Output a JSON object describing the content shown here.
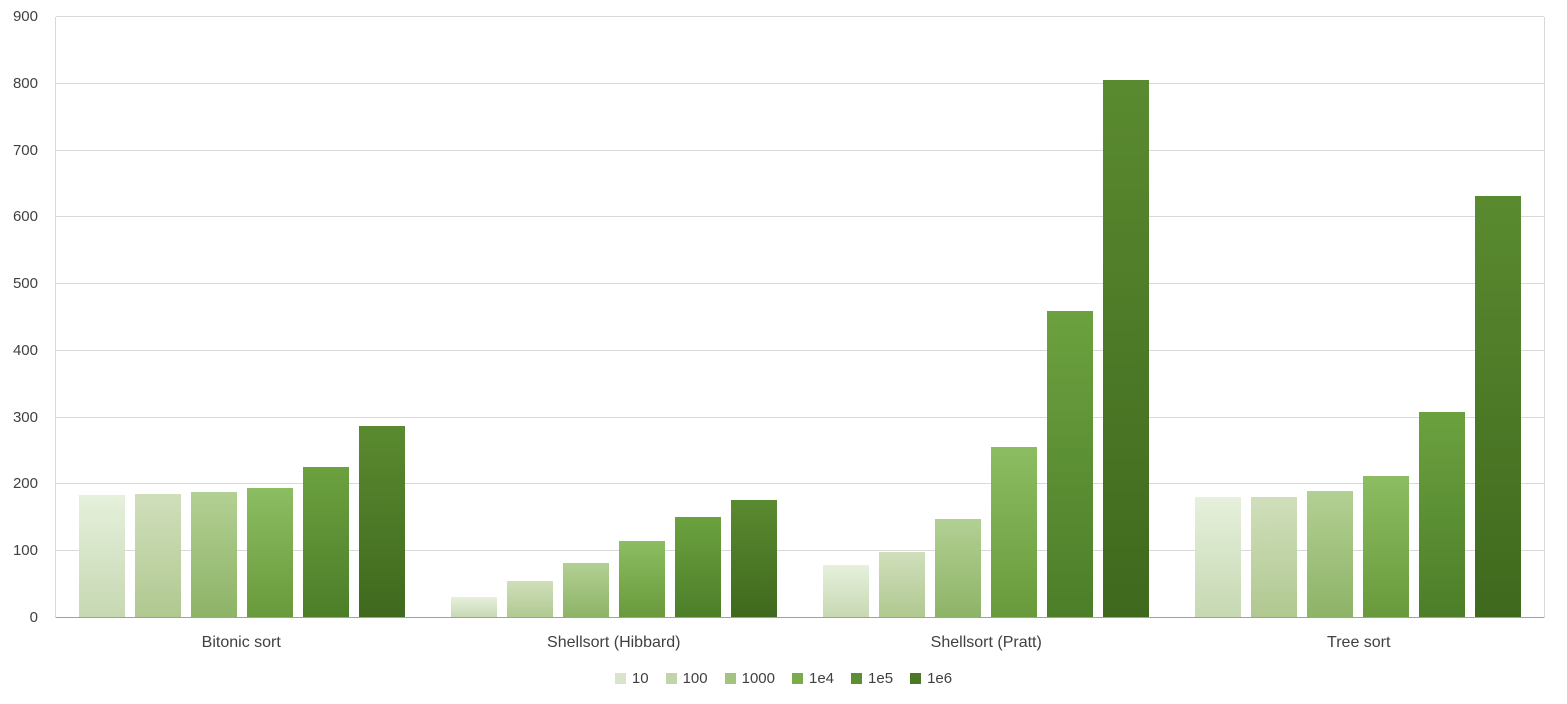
{
  "chart_data": {
    "type": "bar",
    "title": "",
    "xlabel": "",
    "ylabel": "",
    "ylim": [
      0,
      900
    ],
    "ytick_step": 100,
    "yticks": [
      0,
      100,
      200,
      300,
      400,
      500,
      600,
      700,
      800,
      900
    ],
    "grid": true,
    "legend_position": "bottom",
    "categories": [
      "Bitonic sort",
      "Shellsort (Hibbard)",
      "Shellsort (Pratt)",
      "Tree sort"
    ],
    "series": [
      {
        "name": "10",
        "color": "#d8e5ca",
        "color_top": "#e6f0dc",
        "color_bottom": "#c6d8b2",
        "values": [
          184,
          31,
          80,
          181
        ]
      },
      {
        "name": "100",
        "color": "#c2d5a8",
        "color_top": "#d0dfbb",
        "color_bottom": "#b0c890",
        "values": [
          186,
          55,
          99,
          181
        ]
      },
      {
        "name": "1000",
        "color": "#a2c47e",
        "color_top": "#b3d094",
        "color_bottom": "#8db366",
        "values": [
          188,
          82,
          149,
          190
        ]
      },
      {
        "name": "1e4",
        "color": "#7aac4c",
        "color_top": "#8dbd62",
        "color_bottom": "#68993a",
        "values": [
          194,
          115,
          256,
          212
        ]
      },
      {
        "name": "1e5",
        "color": "#5b8f33",
        "color_top": "#6ca13f",
        "color_bottom": "#4c7e29",
        "values": [
          226,
          152,
          460,
          309
        ]
      },
      {
        "name": "1e6",
        "color": "#4b7826",
        "color_top": "#5a8a30",
        "color_bottom": "#3f691d",
        "values": [
          288,
          177,
          805,
          632
        ]
      }
    ],
    "gridline_color": "#d9d9d9",
    "baseline_color": "#a0a0a0",
    "text_color": "#404040"
  }
}
